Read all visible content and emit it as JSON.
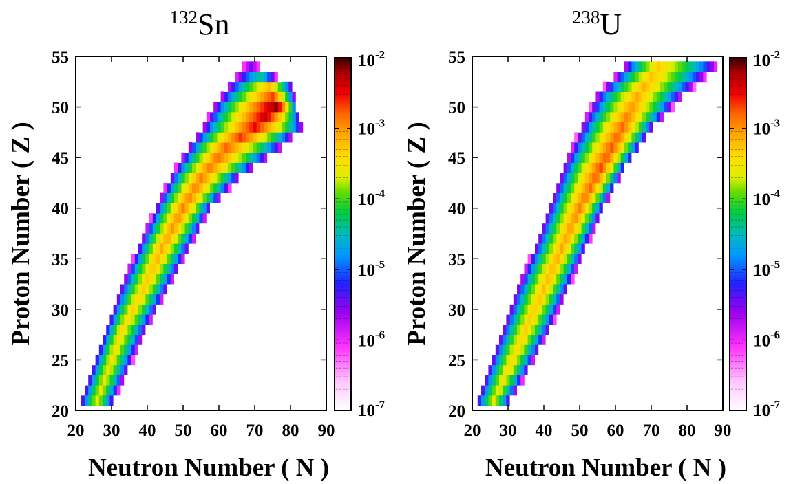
{
  "chart_data": [
    {
      "type": "heatmap",
      "title": "132Sn",
      "title_mass": "132",
      "title_element": "Sn",
      "xlabel": "Neutron Number ( N )",
      "ylabel": "Proton Number ( Z )",
      "xlim": [
        20,
        90
      ],
      "ylim": [
        20,
        55
      ],
      "xticks": [
        20,
        30,
        40,
        50,
        60,
        70,
        80,
        90
      ],
      "yticks": [
        20,
        25,
        30,
        35,
        40,
        45,
        50,
        55
      ],
      "color_scale": "log",
      "colorbar_range": [
        1e-07,
        0.01
      ],
      "colorbar_ticks": [
        {
          "base": "10",
          "exp": "-2"
        },
        {
          "base": "10",
          "exp": "-3"
        },
        {
          "base": "10",
          "exp": "-4"
        },
        {
          "base": "10",
          "exp": "-5"
        },
        {
          "base": "10",
          "exp": "-6"
        },
        {
          "base": "10",
          "exp": "-7"
        }
      ],
      "band": [
        {
          "z": 21,
          "n_min": 21,
          "n_max": 31,
          "n_peak": 26,
          "peak_log10": -3.6
        },
        {
          "z": 24,
          "n_min": 24,
          "n_max": 35,
          "n_peak": 29,
          "peak_log10": -3.5
        },
        {
          "z": 28,
          "n_min": 28,
          "n_max": 40,
          "n_peak": 33,
          "peak_log10": -3.4
        },
        {
          "z": 32,
          "n_min": 32,
          "n_max": 46,
          "n_peak": 39,
          "peak_log10": -3.3
        },
        {
          "z": 36,
          "n_min": 37,
          "n_max": 52,
          "n_peak": 44,
          "peak_log10": -3.1
        },
        {
          "z": 40,
          "n_min": 42,
          "n_max": 58,
          "n_peak": 50,
          "peak_log10": -2.9
        },
        {
          "z": 43,
          "n_min": 46,
          "n_max": 66,
          "n_peak": 55,
          "peak_log10": -2.9
        },
        {
          "z": 46,
          "n_min": 51,
          "n_max": 78,
          "n_peak": 62,
          "peak_log10": -2.8
        },
        {
          "z": 48,
          "n_min": 55,
          "n_max": 84,
          "n_peak": 70,
          "peak_log10": -2.5
        },
        {
          "z": 50,
          "n_min": 58,
          "n_max": 82,
          "n_peak": 76,
          "peak_log10": -2.15
        },
        {
          "z": 52,
          "n_min": 62,
          "n_max": 81,
          "n_peak": 74,
          "peak_log10": -3.2
        },
        {
          "z": 54,
          "n_min": 66,
          "n_max": 72,
          "n_peak": 69,
          "peak_log10": -5.5
        }
      ]
    },
    {
      "type": "heatmap",
      "title": "238U",
      "title_mass": "238",
      "title_element": "U",
      "xlabel": "Neutron Number ( N )",
      "ylabel": "Proton Number ( Z )",
      "xlim": [
        20,
        90
      ],
      "ylim": [
        20,
        55
      ],
      "xticks": [
        20,
        30,
        40,
        50,
        60,
        70,
        80,
        90
      ],
      "yticks": [
        20,
        25,
        30,
        35,
        40,
        45,
        50,
        55
      ],
      "color_scale": "log",
      "colorbar_range": [
        1e-07,
        0.01
      ],
      "colorbar_ticks": [
        {
          "base": "10",
          "exp": "-2"
        },
        {
          "base": "10",
          "exp": "-3"
        },
        {
          "base": "10",
          "exp": "-4"
        },
        {
          "base": "10",
          "exp": "-5"
        },
        {
          "base": "10",
          "exp": "-6"
        },
        {
          "base": "10",
          "exp": "-7"
        }
      ],
      "band": [
        {
          "z": 21,
          "n_min": 21,
          "n_max": 31,
          "n_peak": 26,
          "peak_log10": -3.6
        },
        {
          "z": 24,
          "n_min": 24,
          "n_max": 36,
          "n_peak": 30,
          "peak_log10": -3.4
        },
        {
          "z": 28,
          "n_min": 28,
          "n_max": 42,
          "n_peak": 35,
          "peak_log10": -3.3
        },
        {
          "z": 32,
          "n_min": 32,
          "n_max": 47,
          "n_peak": 40,
          "peak_log10": -3.2
        },
        {
          "z": 36,
          "n_min": 37,
          "n_max": 52,
          "n_peak": 45,
          "peak_log10": -3.1
        },
        {
          "z": 40,
          "n_min": 41,
          "n_max": 57,
          "n_peak": 50,
          "peak_log10": -2.9
        },
        {
          "z": 44,
          "n_min": 45,
          "n_max": 63,
          "n_peak": 56,
          "peak_log10": -2.7
        },
        {
          "z": 48,
          "n_min": 50,
          "n_max": 71,
          "n_peak": 62,
          "peak_log10": -2.8
        },
        {
          "z": 51,
          "n_min": 54,
          "n_max": 79,
          "n_peak": 66,
          "peak_log10": -3.1
        },
        {
          "z": 54,
          "n_min": 62,
          "n_max": 89,
          "n_peak": 72,
          "peak_log10": -3.3
        }
      ]
    }
  ]
}
